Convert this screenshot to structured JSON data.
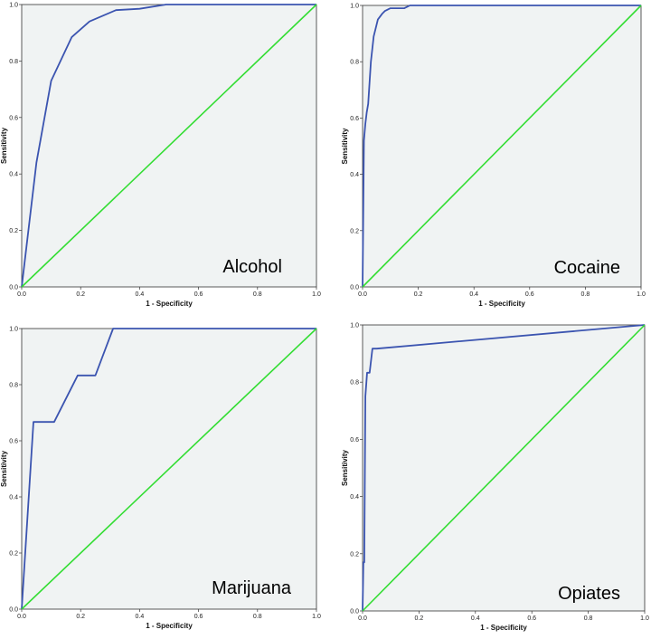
{
  "colors": {
    "plot_background": "#f0f3f3",
    "roc_curve": "#3b54b0",
    "reference_line": "#33dd33",
    "axis": "#333333"
  },
  "chart_data": [
    {
      "type": "line",
      "panel_label": "Alcohol",
      "xlabel": "1 - Specificity",
      "ylabel": "Sensitivity",
      "xlim": [
        0,
        1
      ],
      "ylim": [
        0,
        1
      ],
      "x_ticks": [
        "0.0",
        "0.2",
        "0.4",
        "0.6",
        "0.8",
        "1.0"
      ],
      "y_ticks": [
        "0.0",
        "0.2",
        "0.4",
        "0.6",
        "0.8",
        "1.0"
      ],
      "grid": false,
      "series": [
        {
          "role": "roc",
          "x": [
            0,
            0.05,
            0.1,
            0.17,
            0.23,
            0.32,
            0.4,
            0.49,
            1.0
          ],
          "y": [
            0,
            0.44,
            0.73,
            0.885,
            0.94,
            0.98,
            0.985,
            1.0,
            1.0
          ]
        },
        {
          "role": "reference",
          "x": [
            0,
            1
          ],
          "y": [
            0,
            1
          ]
        }
      ]
    },
    {
      "type": "line",
      "panel_label": "Cocaine",
      "xlabel": "1 - Specificity",
      "ylabel": "Sensitivity",
      "xlim": [
        0,
        1
      ],
      "ylim": [
        0,
        1
      ],
      "x_ticks": [
        "0.0",
        "0.2",
        "0.4",
        "0.6",
        "0.8",
        "1.0"
      ],
      "y_ticks": [
        "0.0",
        "0.2",
        "0.4",
        "0.6",
        "0.8",
        "1.0"
      ],
      "grid": false,
      "series": [
        {
          "role": "roc",
          "x": [
            0,
            0.005,
            0.01,
            0.015,
            0.02,
            0.03,
            0.04,
            0.055,
            0.07,
            0.08,
            0.1,
            0.12,
            0.15,
            0.17,
            1.0
          ],
          "y": [
            0,
            0.52,
            0.58,
            0.62,
            0.65,
            0.8,
            0.89,
            0.95,
            0.97,
            0.98,
            0.99,
            0.99,
            0.99,
            1.0,
            1.0
          ]
        },
        {
          "role": "reference",
          "x": [
            0,
            1
          ],
          "y": [
            0,
            1
          ]
        }
      ]
    },
    {
      "type": "line",
      "panel_label": "Marijuana",
      "xlabel": "1 - Specificity",
      "ylabel": "Sensitivity",
      "xlim": [
        0,
        1
      ],
      "ylim": [
        0,
        1
      ],
      "x_ticks": [
        "0.0",
        "0.2",
        "0.4",
        "0.6",
        "0.8",
        "1.0"
      ],
      "y_ticks": [
        "0.0",
        "0.2",
        "0.4",
        "0.6",
        "0.8",
        "1.0"
      ],
      "grid": false,
      "series": [
        {
          "role": "roc",
          "x": [
            0,
            0.04,
            0.11,
            0.19,
            0.25,
            0.31,
            1.0
          ],
          "y": [
            0,
            0.667,
            0.667,
            0.833,
            0.833,
            1.0,
            1.0
          ]
        },
        {
          "role": "reference",
          "x": [
            0,
            1
          ],
          "y": [
            0,
            1
          ]
        }
      ]
    },
    {
      "type": "line",
      "panel_label": "Opiates",
      "xlabel": "1 - Specificity",
      "ylabel": "Sensitivity",
      "xlim": [
        0,
        1
      ],
      "ylim": [
        0,
        1
      ],
      "x_ticks": [
        "0.0",
        "0.2",
        "0.4",
        "0.6",
        "0.8",
        "1.0"
      ],
      "y_ticks": [
        "0.0",
        "0.2",
        "0.4",
        "0.6",
        "0.8",
        "1.0"
      ],
      "grid": false,
      "series": [
        {
          "role": "roc",
          "x": [
            0,
            0.003,
            0.006,
            0.01,
            0.016,
            0.025,
            0.035,
            0.045,
            0.05,
            1.0
          ],
          "y": [
            0,
            0.17,
            0.17,
            0.75,
            0.833,
            0.833,
            0.917,
            0.917,
            0.917,
            1.0
          ]
        },
        {
          "role": "reference",
          "x": [
            0,
            1
          ],
          "y": [
            0,
            1
          ]
        }
      ]
    }
  ]
}
